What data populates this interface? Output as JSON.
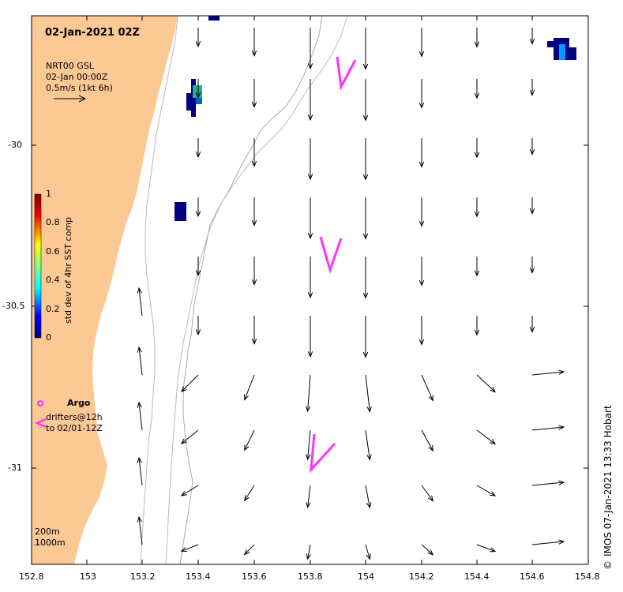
{
  "title": "02-Jan-2021 02Z",
  "model_info": {
    "line1": "NRT00 GSL",
    "line2": "02-Jan 00:00Z",
    "line3": "0.5m/s (1kt 6h)"
  },
  "colorbar": {
    "label": "std dev of 4hr SST comp",
    "ticks": [
      "1",
      "0.8",
      "0.6",
      "0.4",
      "0.2",
      "0"
    ]
  },
  "legend": {
    "argo_label": "Argo",
    "drifters_label": "drifters@12h",
    "drifters_to": "to 02/01-12Z"
  },
  "contours": {
    "label1": "200m",
    "label2": "1000m"
  },
  "credit": "IMOS 07-Jan-2021 13:33 Hobart",
  "credit_symbol": "©",
  "axes": {
    "x_ticks": [
      "152.8",
      "153",
      "153.2",
      "153.4",
      "153.6",
      "153.8",
      "154",
      "154.2",
      "154.4",
      "154.6",
      "154.8"
    ],
    "y_ticks": [
      "-30",
      "-30.5",
      "-31"
    ]
  },
  "colors": {
    "land": "#fcc894",
    "drifter": "#ff33ff",
    "contour": "#aaaaaa",
    "vector": "#000000"
  }
}
